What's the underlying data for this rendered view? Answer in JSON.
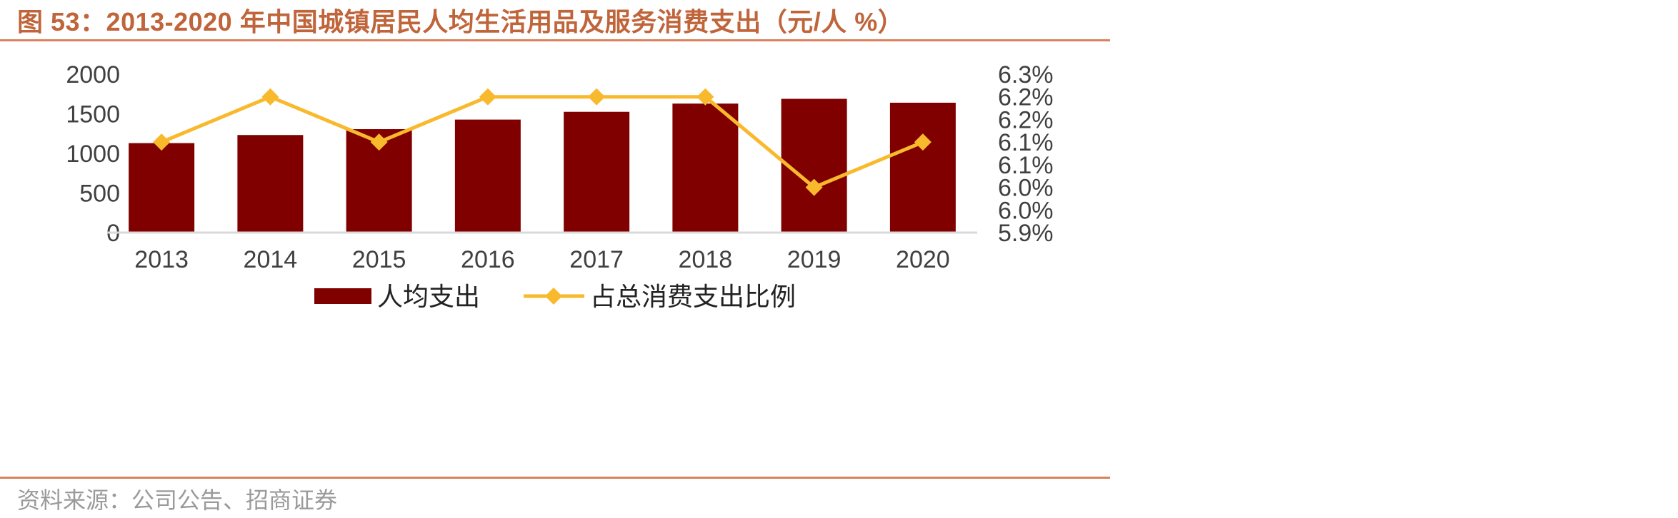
{
  "title": "图 53：2013-2020 年中国城镇居民人均生活用品及服务消费支出（元/人 %）",
  "source": "资料来源：公司公告、招商证券",
  "colors": {
    "bar": "#800000",
    "line": "#f9b92d",
    "title": "#c0643a",
    "rule": "#d9825b"
  },
  "chart_data": {
    "type": "bar",
    "categories": [
      "2013",
      "2014",
      "2015",
      "2016",
      "2017",
      "2018",
      "2019",
      "2020"
    ],
    "series": [
      {
        "name": "人均支出",
        "type": "bar",
        "axis": "left",
        "values": [
          1130,
          1232,
          1306,
          1427,
          1525,
          1629,
          1689,
          1640
        ]
      },
      {
        "name": "占总消费支出比例",
        "type": "line",
        "axis": "right",
        "values": [
          6.1,
          6.2,
          6.1,
          6.2,
          6.2,
          6.2,
          6.0,
          6.1
        ]
      }
    ],
    "y_left": {
      "ylim": [
        0,
        2000
      ],
      "ticks": [
        "0",
        "500",
        "1000",
        "1500",
        "2000"
      ]
    },
    "y_right": {
      "ylim": [
        5.9,
        6.25
      ],
      "ticks": [
        "5.9%",
        "6.0%",
        "6.0%",
        "6.1%",
        "6.1%",
        "6.2%",
        "6.2%",
        "6.3%"
      ]
    },
    "legend": "bottom-center",
    "grid": false
  }
}
